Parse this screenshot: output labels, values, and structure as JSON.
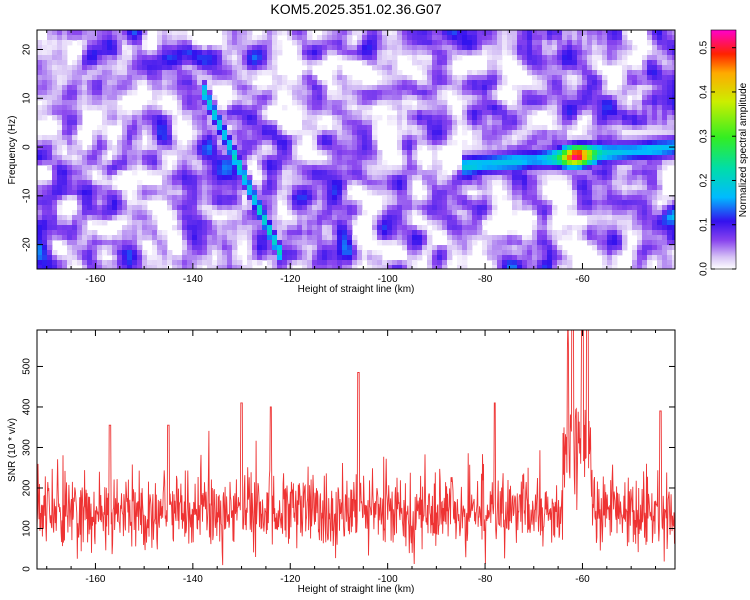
{
  "title": "KOM5.2025.351.02.36.G07",
  "chart_data": [
    {
      "type": "heatmap",
      "name": "spectrogram",
      "xlabel": "Height of straight line (km)",
      "ylabel": "Frequency (Hz)",
      "xlim": [
        -172,
        -41
      ],
      "ylim": [
        -25,
        24
      ],
      "xticks": [
        -160,
        -140,
        -120,
        -100,
        -80,
        -60
      ],
      "yticks": [
        -20,
        -10,
        0,
        10,
        20
      ],
      "colorbar": {
        "label": "Normalized spectral amplitude",
        "range": [
          0.0,
          0.54
        ],
        "ticks": [
          0.0,
          0.1,
          0.2,
          0.3,
          0.4,
          0.5
        ]
      },
      "features": [
        {
          "name": "ridge-main",
          "x_start": -85,
          "x_end": -41,
          "freq_start": -4,
          "freq_end": 0,
          "peak_amplitude": 0.54,
          "peak_x": -61
        },
        {
          "name": "ridge-diagonal",
          "x_start": -138,
          "x_end": -122,
          "freq_start": 12,
          "freq_end": -22,
          "peak_amplitude": 0.2
        }
      ]
    },
    {
      "type": "line",
      "name": "snr",
      "xlabel": "Height of straight line (km)",
      "ylabel": "SNR (10 * v/v)",
      "xlim": [
        -172,
        -41
      ],
      "ylim": [
        0,
        590
      ],
      "xticks": [
        -160,
        -140,
        -120,
        -100,
        -80,
        -60
      ],
      "yticks": [
        0,
        100,
        200,
        300,
        400,
        500
      ],
      "color": "#ee3333",
      "baseline_mean": 140,
      "noise_spread": 65,
      "spikes": [
        {
          "x": -106,
          "y": 485
        },
        {
          "x": -130,
          "y": 410
        },
        {
          "x": -124,
          "y": 400
        },
        {
          "x": -78,
          "y": 410
        },
        {
          "x": -62,
          "y": 590
        },
        {
          "x": -60,
          "y": 560
        },
        {
          "x": -59,
          "y": 535
        },
        {
          "x": -63,
          "y": 430
        },
        {
          "x": -44,
          "y": 390
        },
        {
          "x": -157,
          "y": 355
        },
        {
          "x": -145,
          "y": 355
        }
      ]
    }
  ]
}
